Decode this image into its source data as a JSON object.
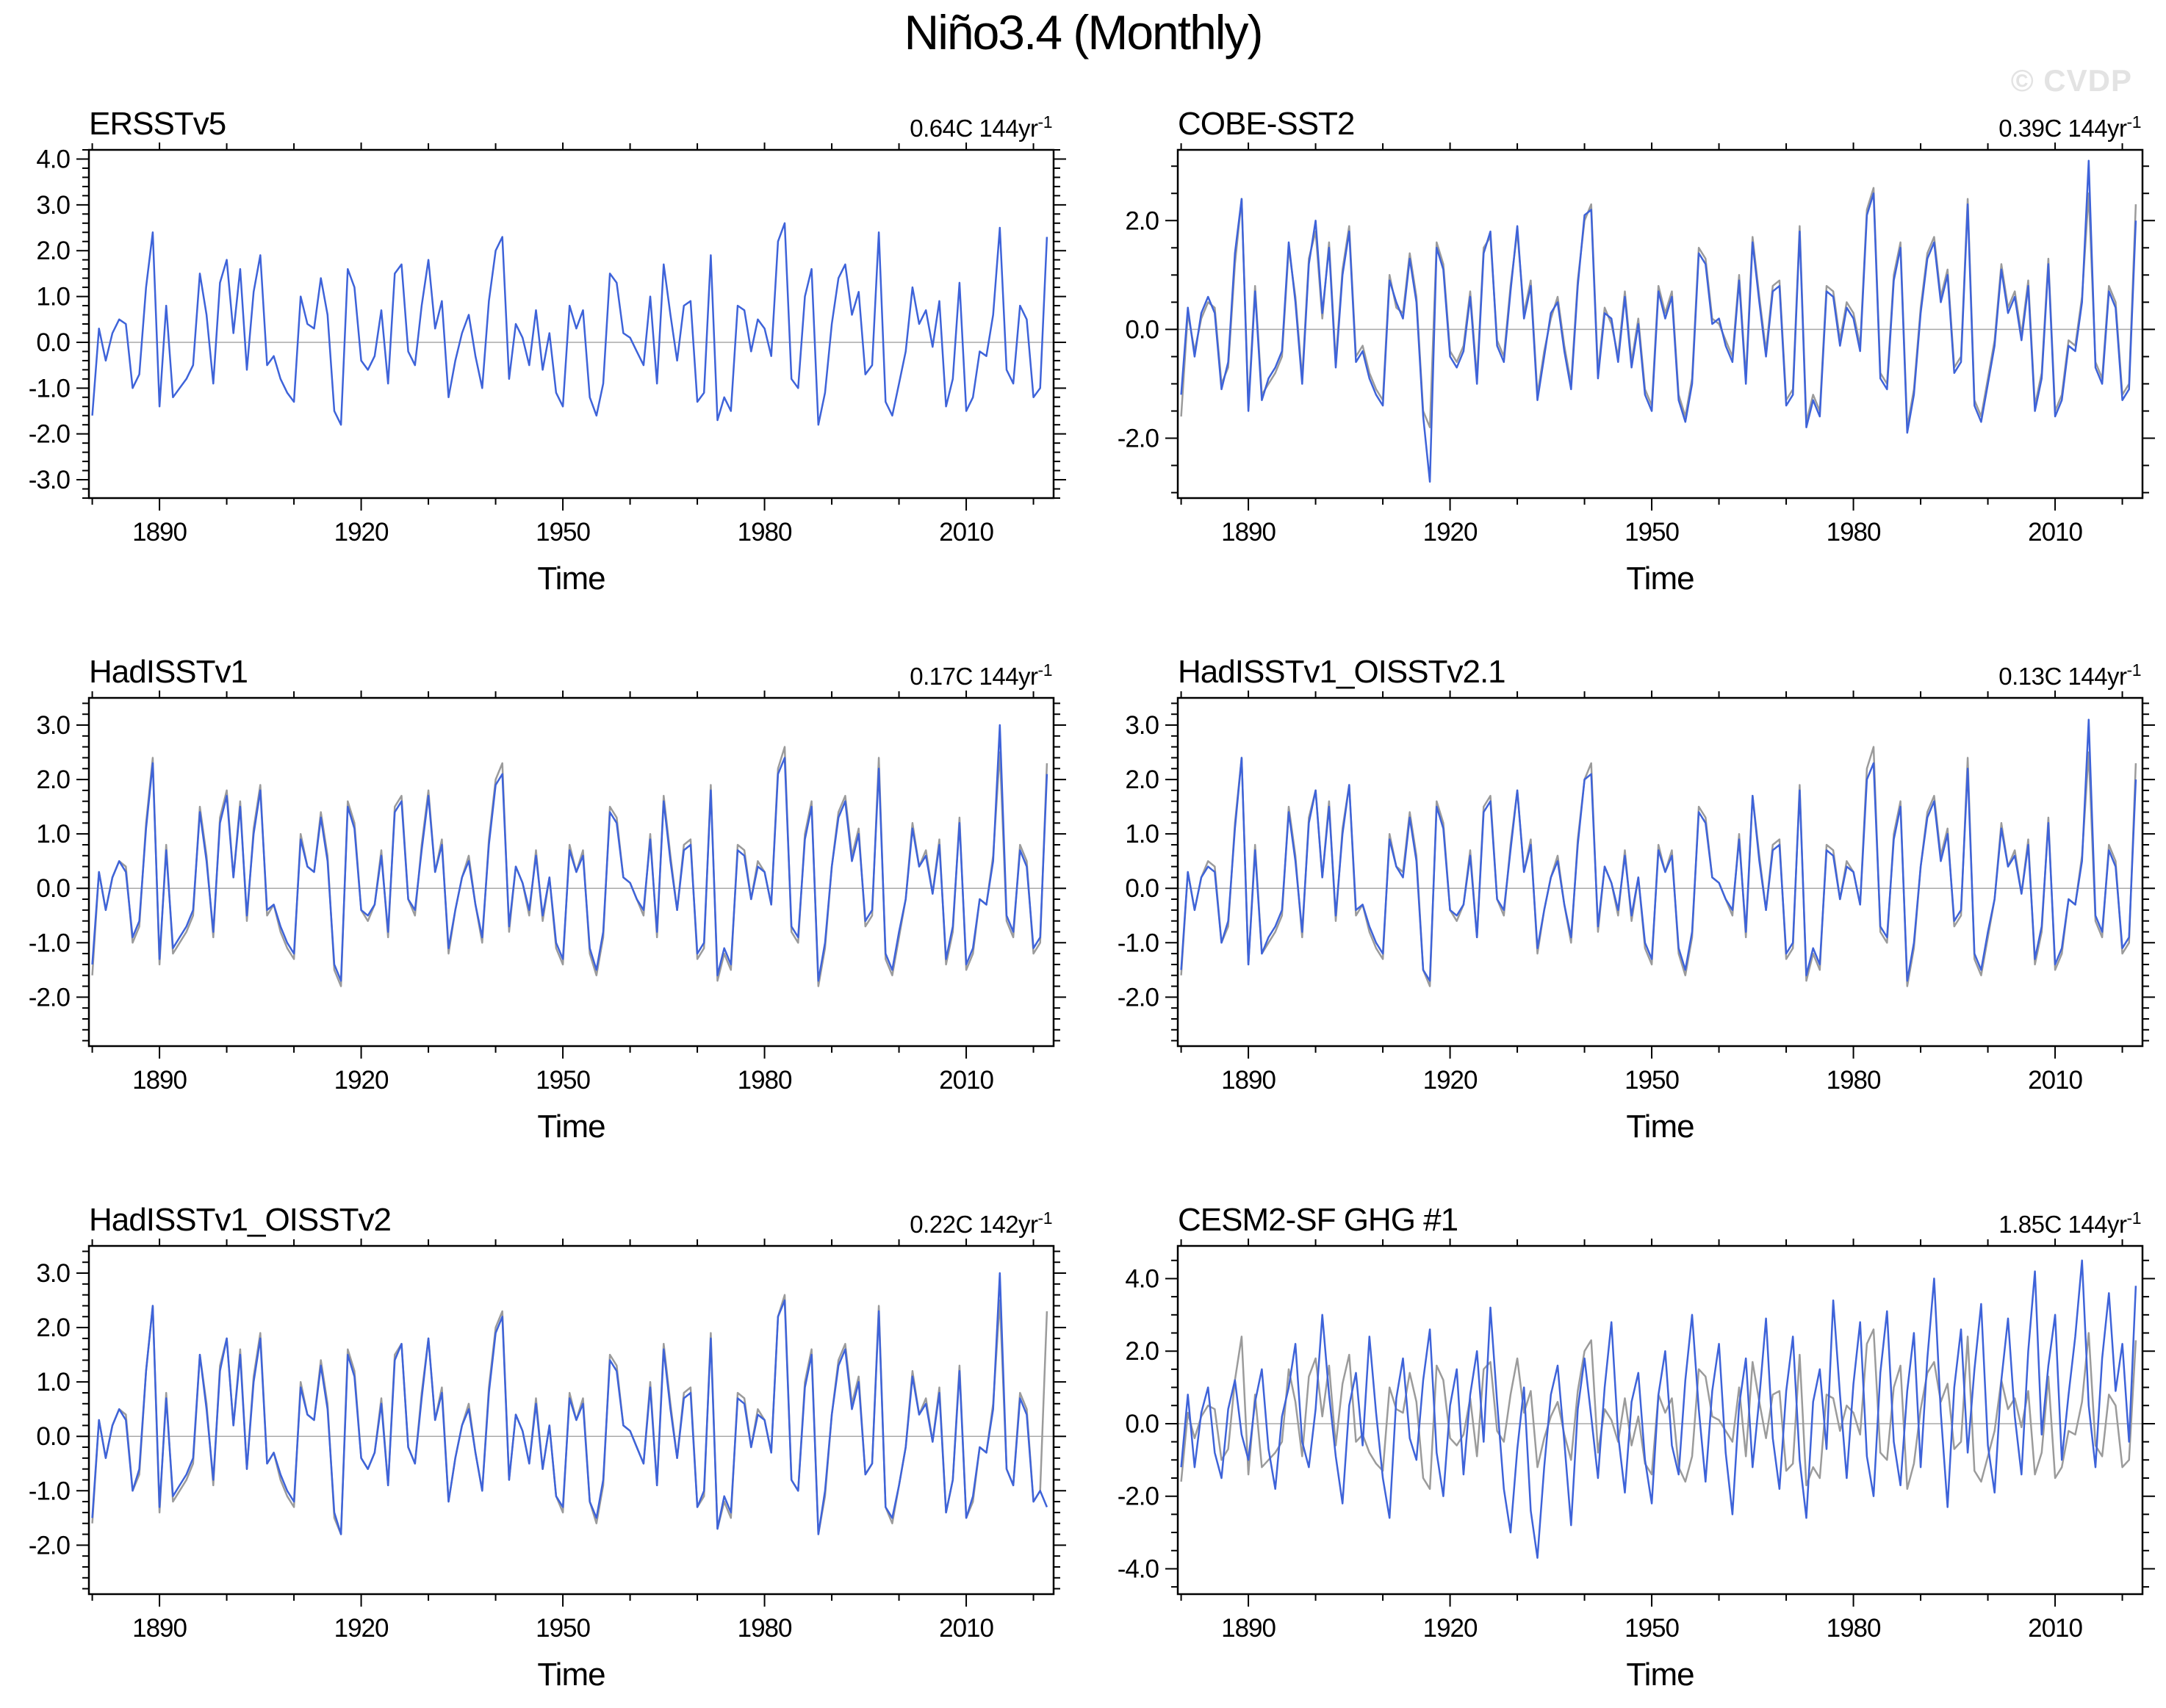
{
  "page": {
    "watermark": "© CVDP"
  },
  "chart_data": {
    "type": "line",
    "title": "Niño3.4 (Monthly)",
    "layout": {
      "grid": "2 columns x 3 rows",
      "legend": "none",
      "zero_reference_line": true,
      "ticks": "outward all four sides, minor ticks unlabeled"
    },
    "colors": {
      "series": "#3e63d9",
      "reference": "#9b9b9b",
      "zero_line": "#a9a9a9",
      "axis": "#000000",
      "watermark": "#e3e3e3"
    },
    "x": {
      "label": "Time",
      "start_year": 1880,
      "end_year": 2022,
      "xlim": [
        1879.5,
        2023
      ],
      "major_ticks": [
        1890,
        1920,
        1950,
        1980,
        2010
      ],
      "minor_tick_step": 10
    },
    "units": "C",
    "reference_series": {
      "name": "observational reference (gray overlay)",
      "values": [
        -1.6,
        0.3,
        -0.4,
        0.2,
        0.5,
        0.4,
        -1.0,
        -0.7,
        1.2,
        2.4,
        -1.4,
        0.8,
        -1.2,
        -1.0,
        -0.8,
        -0.5,
        1.5,
        0.6,
        -0.9,
        1.3,
        1.8,
        0.2,
        1.6,
        -0.6,
        1.1,
        1.9,
        -0.5,
        -0.3,
        -0.8,
        -1.1,
        -1.3,
        1.0,
        0.4,
        0.3,
        1.4,
        0.6,
        -1.5,
        -1.8,
        1.6,
        1.2,
        -0.4,
        -0.6,
        -0.3,
        0.7,
        -0.9,
        1.5,
        1.7,
        -0.2,
        -0.5,
        0.8,
        1.8,
        0.3,
        0.9,
        -1.2,
        -0.4,
        0.2,
        0.6,
        -0.3,
        -1.0,
        0.9,
        2.0,
        2.3,
        -0.8,
        0.4,
        0.1,
        -0.5,
        0.7,
        -0.6,
        0.2,
        -1.1,
        -1.4,
        0.8,
        0.3,
        0.7,
        -1.2,
        -1.6,
        -0.9,
        1.5,
        1.3,
        0.2,
        0.1,
        -0.2,
        -0.5,
        1.0,
        -0.9,
        1.7,
        0.6,
        -0.4,
        0.8,
        0.9,
        -1.3,
        -1.1,
        1.9,
        -1.7,
        -1.2,
        -1.5,
        0.8,
        0.7,
        -0.2,
        0.5,
        0.3,
        -0.3,
        2.2,
        2.6,
        -0.8,
        -1.0,
        1.0,
        1.6,
        -1.8,
        -1.1,
        0.4,
        1.4,
        1.7,
        0.6,
        1.1,
        -0.7,
        -0.5,
        2.4,
        -1.3,
        -1.6,
        -0.9,
        -0.2,
        1.2,
        0.4,
        0.7,
        -0.1,
        0.9,
        -1.4,
        -0.8,
        1.3,
        -1.5,
        -1.2,
        -0.2,
        -0.3,
        0.6,
        2.5,
        -0.6,
        -0.9,
        0.8,
        0.5,
        -1.2,
        -1.0,
        2.3
      ]
    },
    "panels": [
      {
        "id": "ersstv5",
        "title": "ERSSTv5",
        "trend": "0.64C 144yr",
        "trend_sup": "-1",
        "ylim": [
          -3.4,
          4.2
        ],
        "yticks": [
          4.0,
          3.0,
          2.0,
          1.0,
          0.0,
          -1.0,
          -2.0,
          -3.0
        ],
        "y_minor_step": 0.2,
        "show_reference": false,
        "values": [
          -1.6,
          0.3,
          -0.4,
          0.2,
          0.5,
          0.4,
          -1.0,
          -0.7,
          1.2,
          2.4,
          -1.4,
          0.8,
          -1.2,
          -1.0,
          -0.8,
          -0.5,
          1.5,
          0.6,
          -0.9,
          1.3,
          1.8,
          0.2,
          1.6,
          -0.6,
          1.1,
          1.9,
          -0.5,
          -0.3,
          -0.8,
          -1.1,
          -1.3,
          1.0,
          0.4,
          0.3,
          1.4,
          0.6,
          -1.5,
          -1.8,
          1.6,
          1.2,
          -0.4,
          -0.6,
          -0.3,
          0.7,
          -0.9,
          1.5,
          1.7,
          -0.2,
          -0.5,
          0.8,
          1.8,
          0.3,
          0.9,
          -1.2,
          -0.4,
          0.2,
          0.6,
          -0.3,
          -1.0,
          0.9,
          2.0,
          2.3,
          -0.8,
          0.4,
          0.1,
          -0.5,
          0.7,
          -0.6,
          0.2,
          -1.1,
          -1.4,
          0.8,
          0.3,
          0.7,
          -1.2,
          -1.6,
          -0.9,
          1.5,
          1.3,
          0.2,
          0.1,
          -0.2,
          -0.5,
          1.0,
          -0.9,
          1.7,
          0.6,
          -0.4,
          0.8,
          0.9,
          -1.3,
          -1.1,
          1.9,
          -1.7,
          -1.2,
          -1.5,
          0.8,
          0.7,
          -0.2,
          0.5,
          0.3,
          -0.3,
          2.2,
          2.6,
          -0.8,
          -1.0,
          1.0,
          1.6,
          -1.8,
          -1.1,
          0.4,
          1.4,
          1.7,
          0.6,
          1.1,
          -0.7,
          -0.5,
          2.4,
          -1.3,
          -1.6,
          -0.9,
          -0.2,
          1.2,
          0.4,
          0.7,
          -0.1,
          0.9,
          -1.4,
          -0.8,
          1.3,
          -1.5,
          -1.2,
          -0.2,
          -0.3,
          0.6,
          2.5,
          -0.6,
          -0.9,
          0.8,
          0.5,
          -1.2,
          -1.0,
          2.3
        ]
      },
      {
        "id": "cobe-sst2",
        "title": "COBE-SST2",
        "trend": "0.39C 144yr",
        "trend_sup": "-1",
        "ylim": [
          -3.1,
          3.3
        ],
        "yticks": [
          2.0,
          0.0,
          -2.0
        ],
        "y_minor_step": 0.5,
        "show_reference": true,
        "values": [
          -1.2,
          0.4,
          -0.5,
          0.3,
          0.6,
          0.3,
          -1.1,
          -0.6,
          1.4,
          2.4,
          -1.5,
          0.7,
          -1.3,
          -0.9,
          -0.7,
          -0.4,
          1.6,
          0.5,
          -1.0,
          1.2,
          2.0,
          0.3,
          1.5,
          -0.7,
          1.0,
          1.8,
          -0.6,
          -0.4,
          -0.9,
          -1.2,
          -1.4,
          0.9,
          0.5,
          0.2,
          1.3,
          0.5,
          -1.6,
          -2.8,
          1.5,
          1.1,
          -0.5,
          -0.7,
          -0.4,
          0.6,
          -1.0,
          1.4,
          1.8,
          -0.3,
          -0.6,
          0.7,
          1.9,
          0.2,
          0.8,
          -1.3,
          -0.5,
          0.3,
          0.5,
          -0.4,
          -1.1,
          0.8,
          2.1,
          2.2,
          -0.9,
          0.3,
          0.2,
          -0.6,
          0.6,
          -0.7,
          0.1,
          -1.2,
          -1.5,
          0.7,
          0.2,
          0.6,
          -1.3,
          -1.7,
          -1.0,
          1.4,
          1.2,
          0.1,
          0.2,
          -0.3,
          -0.6,
          0.9,
          -1.0,
          1.6,
          0.5,
          -0.5,
          0.7,
          0.8,
          -1.4,
          -1.2,
          1.8,
          -1.8,
          -1.3,
          -1.6,
          0.7,
          0.6,
          -0.3,
          0.4,
          0.2,
          -0.4,
          2.1,
          2.5,
          -0.9,
          -1.1,
          0.9,
          1.5,
          -1.9,
          -1.2,
          0.3,
          1.3,
          1.6,
          0.5,
          1.0,
          -0.8,
          -0.6,
          2.3,
          -1.4,
          -1.7,
          -1.0,
          -0.3,
          1.1,
          0.3,
          0.6,
          -0.2,
          0.8,
          -1.5,
          -0.9,
          1.2,
          -1.6,
          -1.3,
          -0.3,
          -0.4,
          0.5,
          3.1,
          -0.7,
          -1.0,
          0.7,
          0.4,
          -1.3,
          -1.1,
          2.0
        ]
      },
      {
        "id": "hadisstv1",
        "title": "HadISSTv1",
        "trend": "0.17C 144yr",
        "trend_sup": "-1",
        "ylim": [
          -2.9,
          3.5
        ],
        "yticks": [
          3.0,
          2.0,
          1.0,
          0.0,
          -1.0,
          -2.0
        ],
        "y_minor_step": 0.2,
        "show_reference": true,
        "values": [
          -1.4,
          0.3,
          -0.4,
          0.2,
          0.5,
          0.3,
          -0.9,
          -0.6,
          1.1,
          2.3,
          -1.3,
          0.7,
          -1.1,
          -0.9,
          -0.7,
          -0.4,
          1.4,
          0.5,
          -0.8,
          1.2,
          1.7,
          0.2,
          1.5,
          -0.5,
          1.0,
          1.8,
          -0.4,
          -0.3,
          -0.7,
          -1.0,
          -1.2,
          0.9,
          0.4,
          0.3,
          1.3,
          0.5,
          -1.4,
          -1.7,
          1.5,
          1.1,
          -0.4,
          -0.5,
          -0.3,
          0.6,
          -0.8,
          1.4,
          1.6,
          -0.2,
          -0.4,
          0.7,
          1.7,
          0.3,
          0.8,
          -1.1,
          -0.4,
          0.2,
          0.5,
          -0.3,
          -0.9,
          0.8,
          1.9,
          2.1,
          -0.7,
          0.4,
          0.1,
          -0.4,
          0.6,
          -0.5,
          0.2,
          -1.0,
          -1.3,
          0.7,
          0.3,
          0.6,
          -1.1,
          -1.5,
          -0.8,
          1.4,
          1.2,
          0.2,
          0.1,
          -0.2,
          -0.4,
          0.9,
          -0.8,
          1.6,
          0.5,
          -0.4,
          0.7,
          0.8,
          -1.2,
          -1.0,
          1.8,
          -1.6,
          -1.1,
          -1.4,
          0.7,
          0.6,
          -0.2,
          0.4,
          0.3,
          -0.3,
          2.1,
          2.4,
          -0.7,
          -0.9,
          0.9,
          1.5,
          -1.7,
          -1.0,
          0.4,
          1.3,
          1.6,
          0.5,
          1.0,
          -0.6,
          -0.4,
          2.2,
          -1.2,
          -1.5,
          -0.8,
          -0.2,
          1.1,
          0.4,
          0.6,
          -0.1,
          0.8,
          -1.3,
          -0.7,
          1.2,
          -1.4,
          -1.1,
          -0.2,
          -0.3,
          0.5,
          3.0,
          -0.5,
          -0.8,
          0.7,
          0.4,
          -1.1,
          -0.9,
          2.1
        ]
      },
      {
        "id": "hadisstv1-oisstv2-1",
        "title": "HadISSTv1_OISSTv2.1",
        "trend": "0.13C 144yr",
        "trend_sup": "-1",
        "ylim": [
          -2.9,
          3.5
        ],
        "yticks": [
          3.0,
          2.0,
          1.0,
          0.0,
          -1.0,
          -2.0
        ],
        "y_minor_step": 0.2,
        "show_reference": true,
        "values": [
          -1.5,
          0.3,
          -0.4,
          0.2,
          0.4,
          0.3,
          -1.0,
          -0.6,
          1.1,
          2.4,
          -1.4,
          0.7,
          -1.2,
          -0.9,
          -0.7,
          -0.4,
          1.4,
          0.5,
          -0.8,
          1.2,
          1.8,
          0.2,
          1.5,
          -0.5,
          1.0,
          1.9,
          -0.4,
          -0.3,
          -0.7,
          -1.0,
          -1.2,
          0.9,
          0.4,
          0.2,
          1.3,
          0.5,
          -1.5,
          -1.7,
          1.5,
          1.1,
          -0.4,
          -0.5,
          -0.3,
          0.6,
          -0.9,
          1.4,
          1.6,
          -0.2,
          -0.4,
          0.7,
          1.8,
          0.3,
          0.8,
          -1.1,
          -0.4,
          0.2,
          0.5,
          -0.3,
          -0.9,
          0.8,
          2.0,
          2.1,
          -0.7,
          0.4,
          0.1,
          -0.4,
          0.6,
          -0.5,
          0.2,
          -1.0,
          -1.3,
          0.7,
          0.3,
          0.6,
          -1.1,
          -1.5,
          -0.8,
          1.4,
          1.2,
          0.2,
          0.1,
          -0.2,
          -0.4,
          0.9,
          -0.8,
          1.7,
          0.5,
          -0.4,
          0.7,
          0.8,
          -1.2,
          -1.0,
          1.8,
          -1.6,
          -1.1,
          -1.4,
          0.7,
          0.6,
          -0.2,
          0.4,
          0.3,
          -0.3,
          2.0,
          2.3,
          -0.7,
          -0.9,
          0.9,
          1.5,
          -1.7,
          -1.0,
          0.4,
          1.3,
          1.6,
          0.5,
          1.0,
          -0.6,
          -0.4,
          2.2,
          -1.2,
          -1.5,
          -0.8,
          -0.2,
          1.1,
          0.4,
          0.6,
          -0.1,
          0.8,
          -1.3,
          -0.7,
          1.2,
          -1.4,
          -1.1,
          -0.2,
          -0.3,
          0.5,
          3.1,
          -0.5,
          -0.8,
          0.7,
          0.4,
          -1.1,
          -0.9,
          2.0
        ]
      },
      {
        "id": "hadisstv1-oisstv2",
        "title": "HadISSTv1_OISSTv2",
        "trend": "0.22C 142yr",
        "trend_sup": "-1",
        "ylim": [
          -2.9,
          3.5
        ],
        "yticks": [
          3.0,
          2.0,
          1.0,
          0.0,
          -1.0,
          -2.0
        ],
        "y_minor_step": 0.2,
        "show_reference": true,
        "values": [
          -1.5,
          0.3,
          -0.4,
          0.2,
          0.5,
          0.3,
          -1.0,
          -0.6,
          1.2,
          2.4,
          -1.3,
          0.7,
          -1.1,
          -0.9,
          -0.7,
          -0.4,
          1.5,
          0.5,
          -0.8,
          1.2,
          1.8,
          0.2,
          1.5,
          -0.6,
          1.0,
          1.8,
          -0.5,
          -0.3,
          -0.7,
          -1.0,
          -1.2,
          0.9,
          0.4,
          0.3,
          1.3,
          0.5,
          -1.4,
          -1.8,
          1.5,
          1.1,
          -0.4,
          -0.6,
          -0.3,
          0.6,
          -0.9,
          1.4,
          1.7,
          -0.2,
          -0.5,
          0.7,
          1.8,
          0.3,
          0.8,
          -1.2,
          -0.4,
          0.2,
          0.5,
          -0.3,
          -1.0,
          0.8,
          1.9,
          2.2,
          -0.8,
          0.4,
          0.1,
          -0.5,
          0.6,
          -0.6,
          0.2,
          -1.1,
          -1.3,
          0.7,
          0.3,
          0.6,
          -1.2,
          -1.5,
          -0.8,
          1.4,
          1.2,
          0.2,
          0.1,
          -0.2,
          -0.5,
          0.9,
          -0.9,
          1.6,
          0.5,
          -0.4,
          0.7,
          0.8,
          -1.3,
          -1.0,
          1.8,
          -1.7,
          -1.1,
          -1.4,
          0.7,
          0.6,
          -0.2,
          0.4,
          0.3,
          -0.3,
          2.2,
          2.5,
          -0.8,
          -1.0,
          0.9,
          1.5,
          -1.8,
          -1.0,
          0.4,
          1.3,
          1.6,
          0.5,
          1.0,
          -0.7,
          -0.5,
          2.3,
          -1.3,
          -1.5,
          -0.9,
          -0.2,
          1.1,
          0.4,
          0.6,
          -0.1,
          0.8,
          -1.4,
          -0.8,
          1.2,
          -1.5,
          -1.1,
          -0.2,
          -0.3,
          0.5,
          3.0,
          -0.6,
          -0.9,
          0.7,
          0.4,
          -1.2,
          -1.0,
          -1.3
        ]
      },
      {
        "id": "cesm2-sf-ghg-1",
        "title": "CESM2-SF GHG #1",
        "trend": "1.85C 144yr",
        "trend_sup": "-1",
        "ylim": [
          -4.7,
          4.9
        ],
        "yticks": [
          4.0,
          2.0,
          0.0,
          -2.0,
          -4.0
        ],
        "y_minor_step": 0.5,
        "show_reference": true,
        "values": [
          -1.2,
          0.8,
          -1.2,
          0.3,
          1.0,
          -0.8,
          -1.5,
          0.4,
          1.2,
          -0.3,
          -1.0,
          0.6,
          1.5,
          -0.7,
          -1.8,
          0.2,
          1.0,
          2.2,
          -0.5,
          -1.2,
          0.4,
          3.0,
          0.8,
          -0.9,
          -2.2,
          0.5,
          1.4,
          -0.6,
          2.4,
          0.3,
          -1.5,
          -2.6,
          0.7,
          1.8,
          -0.4,
          -1.0,
          1.2,
          2.6,
          -0.8,
          -2.0,
          0.5,
          1.5,
          -1.4,
          0.8,
          2.0,
          -0.5,
          3.2,
          0.6,
          -1.8,
          -3.0,
          -0.7,
          1.0,
          -2.4,
          -3.7,
          -1.2,
          0.8,
          1.6,
          -0.5,
          -2.8,
          0.4,
          1.8,
          0.2,
          -1.5,
          1.0,
          2.8,
          -0.3,
          -1.9,
          0.6,
          1.4,
          -1.0,
          -2.2,
          0.8,
          2.0,
          -0.6,
          -1.4,
          1.2,
          3.0,
          0.4,
          -1.6,
          0.9,
          2.2,
          -0.8,
          -2.5,
          0.5,
          1.8,
          -1.2,
          0.7,
          2.9,
          -0.4,
          -1.8,
          0.9,
          2.4,
          -1.0,
          -2.6,
          0.6,
          1.5,
          -0.7,
          3.4,
          0.8,
          -1.5,
          1.1,
          2.8,
          -0.9,
          -2.0,
          1.4,
          3.1,
          -0.5,
          -1.7,
          0.9,
          2.5,
          -1.2,
          1.8,
          4.0,
          0.3,
          -2.3,
          1.0,
          2.6,
          -0.8,
          1.5,
          3.3,
          -0.6,
          -1.9,
          1.2,
          2.9,
          0.2,
          -1.4,
          2.0,
          4.2,
          -0.3,
          1.6,
          3.0,
          -1.0,
          0.8,
          2.4,
          4.5,
          0.5,
          -1.2,
          1.8,
          3.6,
          0.9,
          2.2,
          -0.5,
          3.8
        ]
      }
    ]
  }
}
